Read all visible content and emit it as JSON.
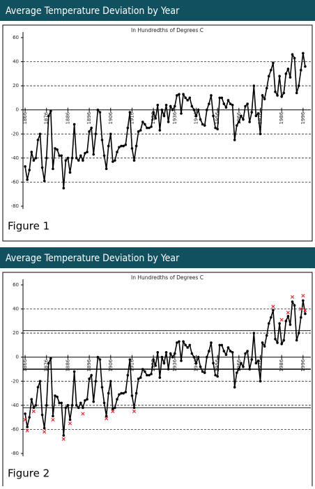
{
  "chart_data": [
    {
      "type": "line",
      "title": "Average Temperature Deviation by Year",
      "subtitle": "In Hundredths of Degrees C",
      "caption": "Figure 1",
      "x": [
        1866,
        1867,
        1868,
        1869,
        1870,
        1871,
        1872,
        1873,
        1874,
        1875,
        1876,
        1877,
        1878,
        1879,
        1880,
        1881,
        1882,
        1883,
        1884,
        1885,
        1886,
        1887,
        1888,
        1889,
        1890,
        1891,
        1892,
        1893,
        1894,
        1895,
        1896,
        1897,
        1898,
        1899,
        1900,
        1901,
        1902,
        1903,
        1904,
        1905,
        1906,
        1907,
        1908,
        1909,
        1910,
        1911,
        1912,
        1913,
        1914,
        1915,
        1916,
        1917,
        1918,
        1919,
        1920,
        1921,
        1922,
        1923,
        1924,
        1925,
        1926,
        1927,
        1928,
        1929,
        1930,
        1931,
        1932,
        1933,
        1934,
        1935,
        1936,
        1937,
        1938,
        1939,
        1940,
        1941,
        1942,
        1943,
        1944,
        1945,
        1946,
        1947,
        1948,
        1949,
        1950,
        1951,
        1952,
        1953,
        1954,
        1955,
        1956,
        1957,
        1958,
        1959,
        1960,
        1961,
        1962,
        1963,
        1964,
        1965,
        1966,
        1967,
        1968,
        1969,
        1970,
        1971,
        1972,
        1973,
        1974,
        1975,
        1976,
        1977,
        1978,
        1979,
        1980,
        1981,
        1982,
        1983,
        1984,
        1985,
        1986,
        1987,
        1988,
        1989,
        1990,
        1991,
        1992,
        1993,
        1994,
        1995,
        1996,
        1997
      ],
      "series": [
        {
          "color": "#000000",
          "values": [
            -47,
            -58,
            -50,
            -35,
            -42,
            -40,
            -25,
            -20,
            -48,
            -59,
            -40,
            -5,
            -1,
            -49,
            -32,
            -33,
            -38,
            -38,
            -65,
            -42,
            -40,
            -52,
            -40,
            -12,
            -40,
            -42,
            -38,
            -42,
            -36,
            -35,
            -18,
            -15,
            -37,
            -20,
            0,
            -2,
            -25,
            -38,
            -49,
            -30,
            -20,
            -43,
            -42,
            -35,
            -31,
            -30,
            -30,
            -29,
            -15,
            -2,
            -32,
            -42,
            -30,
            -18,
            -17,
            -10,
            -12,
            -15,
            -15,
            -14,
            -2,
            -7,
            4,
            -17,
            0,
            -5,
            4,
            -10,
            3,
            0,
            3,
            12,
            13,
            -3,
            13,
            10,
            8,
            10,
            3,
            0,
            -5,
            0,
            -8,
            -12,
            -13,
            0,
            5,
            12,
            -5,
            -15,
            -16,
            10,
            10,
            5,
            2,
            8,
            5,
            4,
            -25,
            -13,
            -10,
            -5,
            -8,
            3,
            5,
            -10,
            -2,
            20,
            -5,
            -3,
            -20,
            12,
            9,
            18,
            28,
            33,
            39,
            15,
            12,
            28,
            11,
            14,
            30,
            34,
            27,
            46,
            43,
            14,
            20,
            33,
            47,
            36
          ]
        }
      ],
      "xlim": [
        1865,
        1998
      ],
      "xticks": [
        1866,
        1876,
        1886,
        1896,
        1906,
        1916,
        1926,
        1936,
        1946,
        1956,
        1966,
        1976,
        1986,
        1996
      ],
      "ylim": [
        -80,
        60
      ],
      "yticks": [
        -80,
        -60,
        -40,
        -20,
        0,
        20,
        40,
        60
      ],
      "grid": true
    },
    {
      "type": "line",
      "title": "Average Temperature Deviation by Year",
      "subtitle": "In Hundredths of Degrees C",
      "caption": "Figure 2",
      "x": [
        1866,
        1867,
        1868,
        1869,
        1870,
        1871,
        1872,
        1873,
        1874,
        1875,
        1876,
        1877,
        1878,
        1879,
        1880,
        1881,
        1882,
        1883,
        1884,
        1885,
        1886,
        1887,
        1888,
        1889,
        1890,
        1891,
        1892,
        1893,
        1894,
        1895,
        1896,
        1897,
        1898,
        1899,
        1900,
        1901,
        1902,
        1903,
        1904,
        1905,
        1906,
        1907,
        1908,
        1909,
        1910,
        1911,
        1912,
        1913,
        1914,
        1915,
        1916,
        1917,
        1918,
        1919,
        1920,
        1921,
        1922,
        1923,
        1924,
        1925,
        1926,
        1927,
        1928,
        1929,
        1930,
        1931,
        1932,
        1933,
        1934,
        1935,
        1936,
        1937,
        1938,
        1939,
        1940,
        1941,
        1942,
        1943,
        1944,
        1945,
        1946,
        1947,
        1948,
        1949,
        1950,
        1951,
        1952,
        1953,
        1954,
        1955,
        1956,
        1957,
        1958,
        1959,
        1960,
        1961,
        1962,
        1963,
        1964,
        1965,
        1966,
        1967,
        1968,
        1969,
        1970,
        1971,
        1972,
        1973,
        1974,
        1975,
        1976,
        1977,
        1978,
        1979,
        1980,
        1981,
        1982,
        1983,
        1984,
        1985,
        1986,
        1987,
        1988,
        1989,
        1990,
        1991,
        1992,
        1993,
        1994,
        1995,
        1996,
        1997
      ],
      "series": [
        {
          "color": "#000000",
          "values": [
            -47,
            -58,
            -50,
            -35,
            -42,
            -40,
            -25,
            -20,
            -48,
            -59,
            -40,
            -5,
            -1,
            -49,
            -32,
            -33,
            -38,
            -38,
            -65,
            -42,
            -40,
            -52,
            -40,
            -12,
            -40,
            -42,
            -38,
            -42,
            -36,
            -35,
            -18,
            -15,
            -37,
            -20,
            0,
            -2,
            -25,
            -38,
            -49,
            -30,
            -20,
            -43,
            -42,
            -35,
            -31,
            -30,
            -30,
            -29,
            -15,
            -2,
            -32,
            -42,
            -30,
            -18,
            -17,
            -10,
            -12,
            -15,
            -15,
            -14,
            -2,
            -7,
            4,
            -17,
            0,
            -5,
            4,
            -10,
            3,
            0,
            3,
            12,
            13,
            -3,
            13,
            10,
            8,
            10,
            3,
            0,
            -5,
            0,
            -8,
            -12,
            -13,
            0,
            5,
            12,
            -5,
            -15,
            -16,
            10,
            10,
            5,
            2,
            8,
            5,
            4,
            -25,
            -13,
            -10,
            -5,
            -8,
            3,
            5,
            -10,
            -2,
            20,
            -5,
            -3,
            -20,
            12,
            9,
            18,
            28,
            33,
            39,
            15,
            12,
            28,
            11,
            14,
            30,
            34,
            27,
            46,
            43,
            14,
            20,
            33,
            47,
            36
          ]
        }
      ],
      "markers": {
        "color": "#e8202a",
        "x": [
          1866,
          1867,
          1870,
          1875,
          1879,
          1884,
          1887,
          1893,
          1904,
          1907,
          1917,
          1982,
          1986,
          1989,
          1991,
          1995,
          1996,
          1997
        ],
        "values": [
          -52,
          -61,
          -45,
          -62,
          -52,
          -68,
          -55,
          -47,
          -51,
          -45,
          -45,
          42,
          31,
          37,
          50,
          40,
          51,
          39
        ]
      },
      "reference_lines": [
        -10,
        22,
        -42
      ],
      "xlim": [
        1865,
        1998
      ],
      "xticks": [
        1866,
        1876,
        1886,
        1896,
        1906,
        1916,
        1926,
        1936,
        1946,
        1956,
        1966,
        1976,
        1986,
        1996
      ],
      "ylim": [
        -80,
        60
      ],
      "yticks": [
        -80,
        -60,
        -40,
        -20,
        0,
        20,
        40,
        60
      ],
      "grid": true
    }
  ]
}
